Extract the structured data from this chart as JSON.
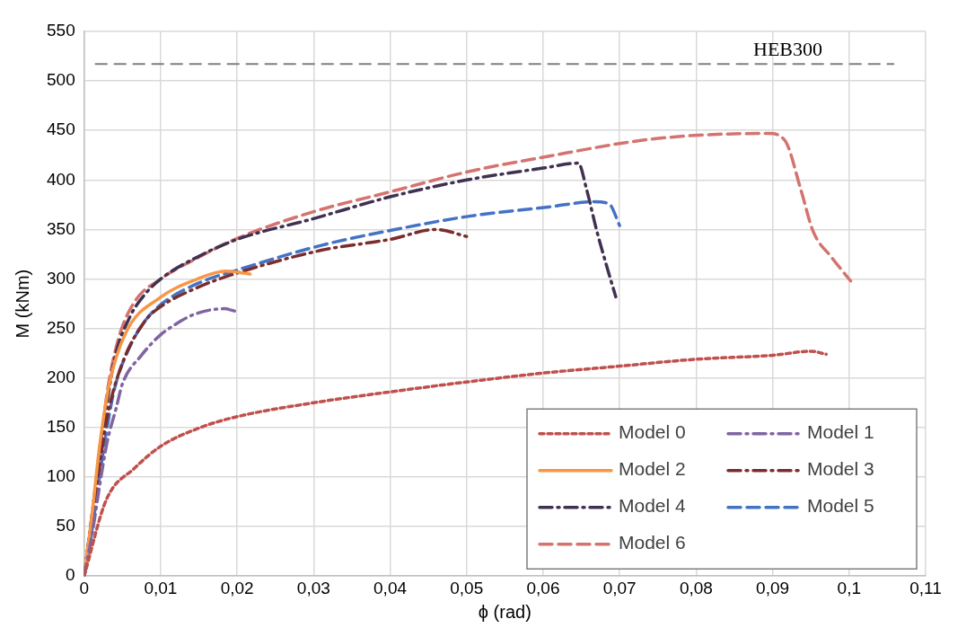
{
  "chart_data": {
    "type": "line",
    "xlabel": "ϕ (rad)",
    "ylabel": "M (kNm)",
    "xlim": [
      0,
      0.11
    ],
    "ylim": [
      0,
      550
    ],
    "xticks": [
      {
        "value": 0,
        "label": "0"
      },
      {
        "value": 0.01,
        "label": "0,01"
      },
      {
        "value": 0.02,
        "label": "0,02"
      },
      {
        "value": 0.03,
        "label": "0,03"
      },
      {
        "value": 0.04,
        "label": "0,04"
      },
      {
        "value": 0.05,
        "label": "0,05"
      },
      {
        "value": 0.06,
        "label": "0,06"
      },
      {
        "value": 0.07,
        "label": "0,07"
      },
      {
        "value": 0.08,
        "label": "0,08"
      },
      {
        "value": 0.09,
        "label": "0,09"
      },
      {
        "value": 0.1,
        "label": "0,1"
      },
      {
        "value": 0.11,
        "label": "0,11"
      }
    ],
    "yticks": [
      0,
      50,
      100,
      150,
      200,
      250,
      300,
      350,
      400,
      450,
      500,
      550
    ],
    "grid": true,
    "legend": "bottom right",
    "marker": "none",
    "ref_lines": [
      {
        "axis": "y",
        "value": 517,
        "label": "HEB300",
        "color": "#7f7f7f",
        "line_style": "dashed"
      }
    ],
    "series": [
      {
        "name": "Model 0",
        "color": "#c0504d",
        "line_style": "dotted",
        "x": [
          0,
          0.0029,
          0.0066,
          0.01,
          0.0152,
          0.02,
          0.03,
          0.04,
          0.05,
          0.06,
          0.07,
          0.08,
          0.09,
          0.095,
          0.097
        ],
        "values": [
          0,
          77,
          109,
          131,
          150,
          161,
          175,
          186,
          196,
          205,
          212,
          219,
          223,
          227,
          224
        ]
      },
      {
        "name": "Model 1",
        "color": "#8064a2",
        "line_style": "dashdot",
        "x": [
          0,
          0.001,
          0.002,
          0.003,
          0.0042,
          0.005,
          0.0075,
          0.0099,
          0.0115,
          0.0143,
          0.0183,
          0.02
        ],
        "values": [
          0,
          40,
          90,
          135,
          170,
          194,
          223,
          243,
          252,
          264,
          270,
          267
        ]
      },
      {
        "name": "Model 2",
        "color": "#f79646",
        "line_style": "solid",
        "x": [
          0,
          0.001,
          0.002,
          0.0033,
          0.0054,
          0.0099,
          0.0148,
          0.0185,
          0.0217
        ],
        "values": [
          0,
          60,
          130,
          194,
          245,
          281,
          300,
          308,
          305
        ]
      },
      {
        "name": "Model 3",
        "color": "#7b2c2c",
        "line_style": "dashdot",
        "x": [
          0,
          0.001,
          0.002,
          0.003,
          0.005,
          0.008,
          0.01,
          0.015,
          0.02,
          0.031,
          0.04,
          0.046,
          0.05
        ],
        "values": [
          0,
          55,
          110,
          160,
          215,
          258,
          272,
          292,
          306,
          329,
          340,
          350,
          343
        ]
      },
      {
        "name": "Model 4",
        "color": "#403152",
        "line_style": "dashdot",
        "x": [
          0,
          0.001,
          0.002,
          0.003,
          0.004,
          0.006,
          0.008,
          0.01,
          0.015,
          0.02,
          0.03,
          0.04,
          0.05,
          0.06,
          0.0646,
          0.0657,
          0.067,
          0.0685,
          0.0695
        ],
        "values": [
          0,
          60,
          120,
          175,
          220,
          262,
          285,
          300,
          323,
          340,
          361,
          383,
          400,
          412,
          417,
          390,
          349,
          308,
          282
        ]
      },
      {
        "name": "Model 5",
        "color": "#4472c4",
        "line_style": "dashed",
        "x": [
          0,
          0.001,
          0.002,
          0.003,
          0.004,
          0.006,
          0.008,
          0.01,
          0.015,
          0.02,
          0.031,
          0.04,
          0.05,
          0.061,
          0.0665,
          0.0686,
          0.07
        ],
        "values": [
          0,
          45,
          100,
          150,
          190,
          232,
          258,
          274,
          296,
          309,
          334,
          349,
          363,
          373,
          378,
          376,
          354
        ]
      },
      {
        "name": "Model 6",
        "color": "#d4736f",
        "line_style": "dashed",
        "x": [
          0,
          0.001,
          0.002,
          0.003,
          0.0045,
          0.0066,
          0.01,
          0.015,
          0.02,
          0.03,
          0.04,
          0.05,
          0.06,
          0.075,
          0.0895,
          0.0916,
          0.0937,
          0.0953,
          0.0977,
          0.1002
        ],
        "values": [
          0,
          55,
          120,
          185,
          240,
          277,
          300,
          322,
          341,
          368,
          388,
          408,
          423,
          442,
          447,
          440,
          390,
          348,
          322,
          298
        ]
      }
    ]
  }
}
